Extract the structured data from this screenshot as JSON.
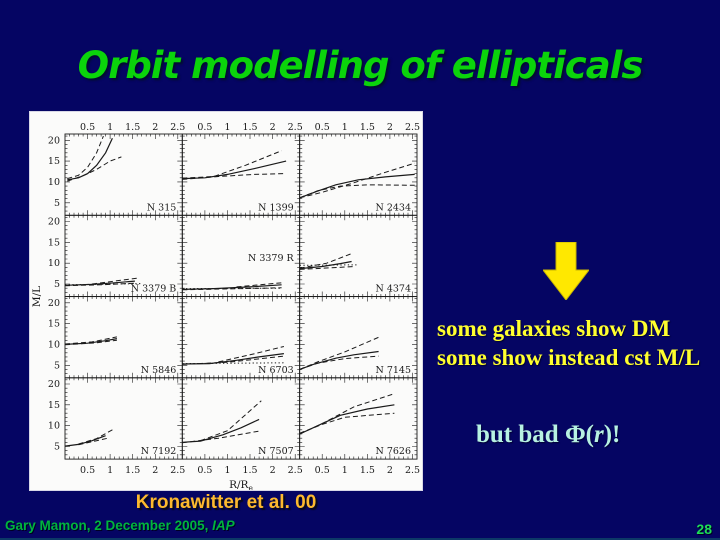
{
  "slide": {
    "title": "Orbit modelling of ellipticals",
    "caption": "Kronawitter et al. 00",
    "annotation_dm": {
      "line1": "some galaxies show DM",
      "line2": "some show instead cst M/L"
    },
    "annotation_phi": {
      "prefix": "but bad Φ(",
      "var": "r",
      "suffix": ")!"
    },
    "footer": {
      "credit": "Gary Mamon, 2 December 2005, ",
      "affiliation": "IAP",
      "page": "28"
    },
    "colors": {
      "background": "#050563",
      "title_green": "#0bd40b",
      "arrow_yellow": "#ffe800",
      "dm_yellow": "#ffff2e",
      "phi_cyan": "#b7f2e2",
      "caption_orange": "#fdb92e",
      "footer_green": "#00b43e",
      "ink": "#1a1a1a"
    }
  },
  "chart_data": {
    "type": "line",
    "title": "",
    "xlabel": "R/R",
    "xlabel_sub": "e",
    "ylabel": "M/L",
    "rows": 4,
    "cols": 3,
    "xlim": [
      0,
      2.6
    ],
    "ylim": [
      2,
      21.5
    ],
    "xtick_values": [
      0.5,
      1,
      1.5,
      2,
      2.5
    ],
    "xtick_labels": [
      "0.5",
      "1",
      "1.5",
      "2",
      "2.5"
    ],
    "ytick_values": [
      5,
      10,
      15,
      20
    ],
    "ytick_labels": [
      "5",
      "10",
      "15",
      "20"
    ],
    "grid": "off",
    "legend": "none",
    "line_meaning": {
      "solid": "best-fit model M/L(r)",
      "dashed": "upper/lower envelope",
      "dotted": "constant M/L"
    },
    "panels": [
      {
        "name": "N 315",
        "label_pos": "br",
        "solid": [
          [
            0.05,
            10.5
          ],
          [
            0.3,
            11.0
          ],
          [
            0.5,
            12.0
          ],
          [
            0.7,
            14.0
          ],
          [
            0.9,
            17.0
          ],
          [
            1.05,
            20.5
          ]
        ],
        "dash_upper": [
          [
            0.05,
            10.8
          ],
          [
            0.3,
            11.6
          ],
          [
            0.5,
            13.5
          ],
          [
            0.7,
            17.0
          ],
          [
            0.85,
            21.0
          ]
        ],
        "dash_lower": [
          [
            0.05,
            10.2
          ],
          [
            0.4,
            11.5
          ],
          [
            0.7,
            13.0
          ],
          [
            1.0,
            15.0
          ],
          [
            1.25,
            16.0
          ]
        ]
      },
      {
        "name": "N 1399",
        "label_pos": "br",
        "solid": [
          [
            0,
            10.8
          ],
          [
            0.5,
            11.0
          ],
          [
            1.0,
            11.8
          ],
          [
            1.6,
            13.2
          ],
          [
            2.3,
            15.0
          ]
        ],
        "dash_upper": [
          [
            0,
            10.9
          ],
          [
            0.7,
            11.3
          ],
          [
            1.4,
            14.0
          ],
          [
            2.2,
            17.5
          ]
        ],
        "dash_lower": [
          [
            0,
            10.6
          ],
          [
            0.8,
            11.3
          ],
          [
            1.6,
            11.8
          ],
          [
            2.3,
            12.0
          ]
        ]
      },
      {
        "name": "N 2434",
        "label_pos": "br",
        "solid": [
          [
            0,
            6.2
          ],
          [
            0.4,
            7.8
          ],
          [
            0.8,
            9.3
          ],
          [
            1.3,
            10.5
          ],
          [
            1.9,
            11.2
          ],
          [
            2.55,
            11.8
          ]
        ],
        "dash_upper": [
          [
            0,
            6.2
          ],
          [
            0.5,
            7.5
          ],
          [
            1.2,
            9.8
          ],
          [
            1.9,
            12.3
          ],
          [
            2.55,
            14.5
          ]
        ],
        "dash_lower": [
          [
            0,
            6.2
          ],
          [
            0.4,
            7.9
          ],
          [
            0.9,
            9.0
          ],
          [
            1.5,
            9.3
          ],
          [
            2.55,
            9.2
          ]
        ]
      },
      {
        "name": "N 3379 B",
        "label_pos": "br",
        "solid": [
          [
            0,
            4.7
          ],
          [
            0.6,
            4.9
          ],
          [
            1.1,
            5.3
          ],
          [
            1.55,
            5.7
          ]
        ],
        "dash_upper": [
          [
            0.6,
            5.0
          ],
          [
            1.1,
            5.7
          ],
          [
            1.6,
            6.4
          ]
        ],
        "dash_lower": [
          [
            0,
            4.6
          ],
          [
            0.8,
            4.8
          ],
          [
            1.55,
            5.2
          ]
        ],
        "dotted": [
          [
            0,
            4.8
          ],
          [
            1.7,
            5.1
          ]
        ]
      },
      {
        "name": "N 3379 R",
        "label_pos": "mr",
        "solid": [
          [
            0,
            3.7
          ],
          [
            0.7,
            3.9
          ],
          [
            1.5,
            4.3
          ],
          [
            2.2,
            4.8
          ]
        ],
        "dash_upper": [
          [
            1.2,
            4.3
          ],
          [
            2.2,
            5.3
          ]
        ],
        "dash_lower": [
          [
            0,
            3.6
          ],
          [
            2.2,
            4.1
          ]
        ],
        "dotted": [
          [
            0,
            3.9
          ],
          [
            2.2,
            4.0
          ]
        ]
      },
      {
        "name": "N 4374",
        "label_pos": "br",
        "solid": [
          [
            0,
            8.7
          ],
          [
            0.5,
            9.2
          ],
          [
            0.9,
            9.9
          ],
          [
            1.15,
            10.4
          ]
        ],
        "dash_upper": [
          [
            0,
            8.8
          ],
          [
            0.6,
            10.0
          ],
          [
            1.15,
            12.3
          ]
        ],
        "dash_lower": [
          [
            0,
            8.5
          ],
          [
            0.7,
            8.9
          ],
          [
            1.2,
            9.2
          ]
        ],
        "dotted": [
          [
            0,
            9.5
          ],
          [
            1.3,
            9.6
          ]
        ]
      },
      {
        "name": "N 5846",
        "label_pos": "br",
        "solid": [
          [
            0,
            10.0
          ],
          [
            0.5,
            10.3
          ],
          [
            0.9,
            10.9
          ],
          [
            1.15,
            11.4
          ]
        ],
        "dash_upper": [
          [
            0,
            10.1
          ],
          [
            0.6,
            10.6
          ],
          [
            1.15,
            11.8
          ]
        ],
        "dash_lower": [
          [
            0,
            9.9
          ],
          [
            0.7,
            10.4
          ],
          [
            1.15,
            11.0
          ]
        ]
      },
      {
        "name": "N 6703",
        "label_pos": "br",
        "solid": [
          [
            0,
            5.3
          ],
          [
            0.6,
            5.4
          ],
          [
            1.2,
            6.2
          ],
          [
            1.7,
            7.0
          ],
          [
            2.25,
            7.8
          ]
        ],
        "dash_upper": [
          [
            0.8,
            5.8
          ],
          [
            1.5,
            7.5
          ],
          [
            2.25,
            9.5
          ]
        ],
        "dash_lower": [
          [
            0,
            5.2
          ],
          [
            1.0,
            5.7
          ],
          [
            2.25,
            7.2
          ]
        ],
        "dotted": [
          [
            0,
            5.4
          ],
          [
            2.25,
            5.6
          ]
        ]
      },
      {
        "name": "N 7145",
        "label_pos": "br",
        "solid": [
          [
            0,
            4.0
          ],
          [
            0.3,
            5.2
          ],
          [
            0.8,
            6.7
          ],
          [
            1.2,
            7.5
          ],
          [
            1.75,
            8.3
          ]
        ],
        "dash_upper": [
          [
            0,
            4.0
          ],
          [
            0.4,
            5.8
          ],
          [
            1.0,
            8.2
          ],
          [
            1.75,
            11.7
          ]
        ],
        "dash_lower": [
          [
            0,
            4.0
          ],
          [
            0.4,
            5.5
          ],
          [
            1.0,
            6.6
          ],
          [
            1.75,
            7.2
          ]
        ]
      },
      {
        "name": "N 7192",
        "label_pos": "br",
        "solid": [
          [
            0,
            5.1
          ],
          [
            0.3,
            5.5
          ],
          [
            0.6,
            6.4
          ],
          [
            0.9,
            7.6
          ]
        ],
        "dash_upper": [
          [
            0.3,
            5.6
          ],
          [
            0.7,
            6.9
          ],
          [
            1.05,
            9.0
          ]
        ],
        "dash_lower": [
          [
            0.3,
            5.4
          ],
          [
            0.7,
            6.4
          ],
          [
            0.95,
            7.0
          ]
        ]
      },
      {
        "name": "N 7507",
        "label_pos": "br",
        "solid": [
          [
            0,
            6.0
          ],
          [
            0.4,
            6.3
          ],
          [
            0.9,
            7.8
          ],
          [
            1.3,
            9.5
          ],
          [
            1.7,
            11.5
          ]
        ],
        "dash_upper": [
          [
            0.4,
            6.4
          ],
          [
            1.0,
            8.8
          ],
          [
            1.75,
            16.0
          ]
        ],
        "dash_lower": [
          [
            0,
            5.9
          ],
          [
            0.8,
            7.0
          ],
          [
            1.75,
            8.8
          ]
        ]
      },
      {
        "name": "N 7626",
        "label_pos": "br",
        "solid": [
          [
            0,
            8.0
          ],
          [
            0.4,
            10.0
          ],
          [
            0.9,
            12.5
          ],
          [
            1.5,
            14.0
          ],
          [
            2.1,
            15.0
          ]
        ],
        "dash_upper": [
          [
            0,
            8.0
          ],
          [
            0.5,
            10.5
          ],
          [
            1.2,
            14.5
          ],
          [
            2.05,
            17.5
          ]
        ],
        "dash_lower": [
          [
            0,
            8.2
          ],
          [
            0.5,
            10.3
          ],
          [
            1.0,
            12.0
          ],
          [
            2.1,
            13.0
          ]
        ]
      }
    ]
  }
}
